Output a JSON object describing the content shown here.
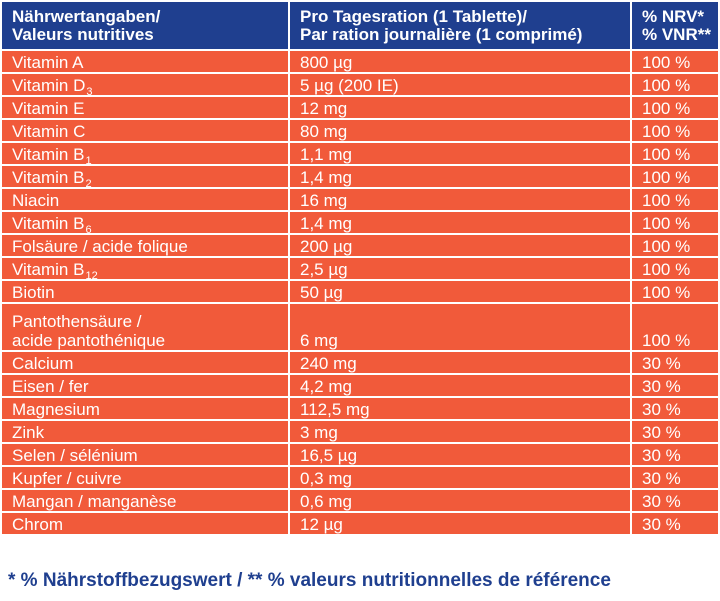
{
  "header": {
    "col1": [
      "Nährwertangaben/",
      "Valeurs nutritives"
    ],
    "col2": [
      "Pro Tagesration (1 Tablette)/",
      "Par ration journalière (1 comprimé)"
    ],
    "col3": [
      "% NRV*",
      "% VNR**"
    ]
  },
  "rows": [
    {
      "name": "Vitamin A",
      "sub": "",
      "amount": "800 µg",
      "nrv": "100 %"
    },
    {
      "name": "Vitamin D",
      "sub": "3",
      "amount": "5 µg (200 IE)",
      "nrv": "100 %"
    },
    {
      "name": "Vitamin E",
      "sub": "",
      "amount": "12 mg",
      "nrv": "100 %"
    },
    {
      "name": "Vitamin C",
      "sub": "",
      "amount": "80 mg",
      "nrv": "100 %"
    },
    {
      "name": "Vitamin B",
      "sub": "1",
      "amount": "1,1 mg",
      "nrv": "100 %"
    },
    {
      "name": "Vitamin B",
      "sub": "2",
      "amount": "1,4 mg",
      "nrv": "100 %"
    },
    {
      "name": "Niacin",
      "sub": "",
      "amount": "16 mg",
      "nrv": "100 %"
    },
    {
      "name": "Vitamin B",
      "sub": "6",
      "amount": "1,4 mg",
      "nrv": "100 %"
    },
    {
      "name": "Folsäure / acide folique",
      "sub": "",
      "amount": "200 µg",
      "nrv": "100 %"
    },
    {
      "name": "Vitamin B",
      "sub": "12",
      "amount": "2,5 µg",
      "nrv": "100 %"
    },
    {
      "name": "Biotin",
      "sub": "",
      "amount": "50 µg",
      "nrv": "100 %"
    },
    {
      "name": "Pantothensäure /",
      "name2": "acide pantothénique",
      "sub": "",
      "amount": "6 mg",
      "nrv": "100 %"
    },
    {
      "name": "Calcium",
      "sub": "",
      "amount": "240 mg",
      "nrv": "30 %"
    },
    {
      "name": "Eisen / fer",
      "sub": "",
      "amount": "4,2 mg",
      "nrv": "30 %"
    },
    {
      "name": "Magnesium",
      "sub": "",
      "amount": "112,5 mg",
      "nrv": "30 %"
    },
    {
      "name": "Zink",
      "sub": "",
      "amount": "3 mg",
      "nrv": "30 %"
    },
    {
      "name": "Selen / sélénium",
      "sub": "",
      "amount": "16,5 µg",
      "nrv": "30 %"
    },
    {
      "name": "Kupfer / cuivre",
      "sub": "",
      "amount": "0,3 mg",
      "nrv": "30 %"
    },
    {
      "name": "Mangan / manganèse",
      "sub": "",
      "amount": "0,6 mg",
      "nrv": "30 %"
    },
    {
      "name": "Chrom",
      "sub": "",
      "amount": "12 µg",
      "nrv": "30 %"
    }
  ],
  "footnote": "* % Nährstoffbezugswert / ** % valeurs nutritionnelles de référence",
  "colors": {
    "header_bg": "#1f3f8f",
    "row_bg": "#f15a3a",
    "text": "#ffffff",
    "footnote": "#1f3f8f"
  }
}
